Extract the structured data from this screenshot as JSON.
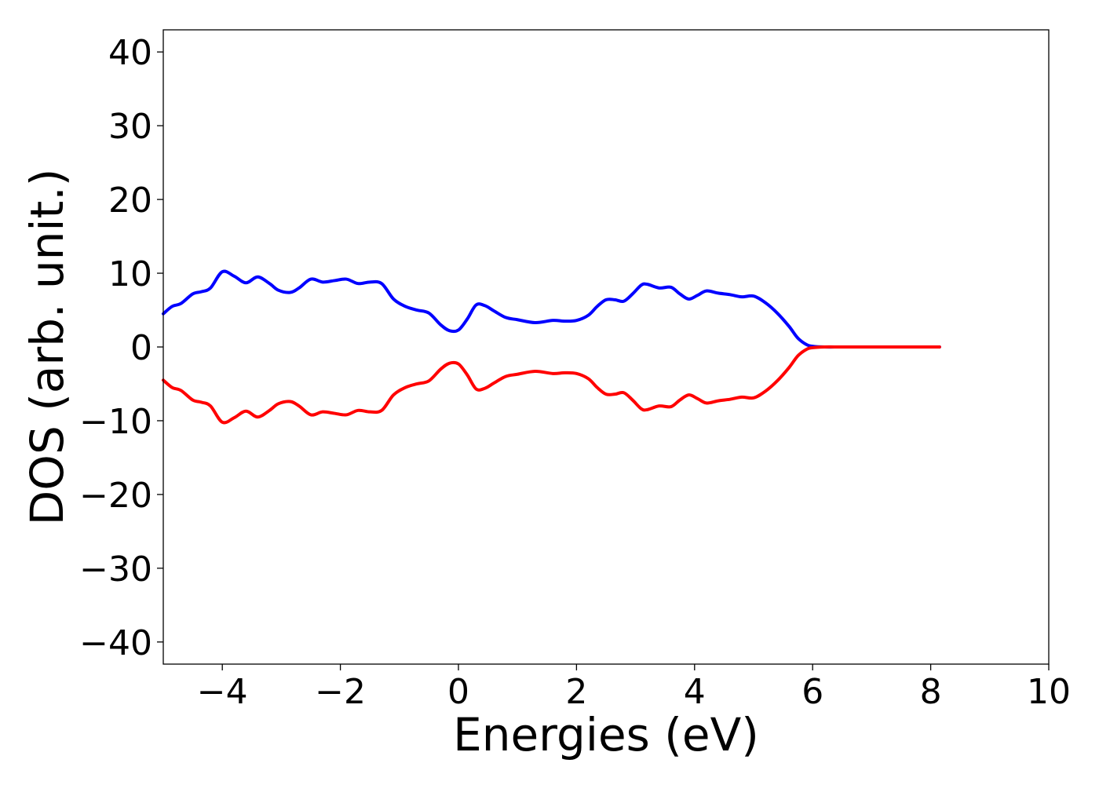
{
  "chart_data": {
    "type": "line",
    "title": "",
    "xlabel": "Energies (eV)",
    "ylabel": "DOS (arb. unit.)",
    "xlim": [
      -5,
      10
    ],
    "ylim": [
      -43,
      43
    ],
    "xticks": [
      {
        "value": -4,
        "label": "−4"
      },
      {
        "value": -2,
        "label": "−2"
      },
      {
        "value": 0,
        "label": "0"
      },
      {
        "value": 2,
        "label": "2"
      },
      {
        "value": 4,
        "label": "4"
      },
      {
        "value": 6,
        "label": "6"
      },
      {
        "value": 8,
        "label": "8"
      },
      {
        "value": 10,
        "label": "10"
      }
    ],
    "yticks": [
      {
        "value": 40,
        "label": "40"
      },
      {
        "value": 30,
        "label": "30"
      },
      {
        "value": 20,
        "label": "20"
      },
      {
        "value": 10,
        "label": "10"
      },
      {
        "value": 0,
        "label": "0"
      },
      {
        "value": -10,
        "label": "−10"
      },
      {
        "value": -20,
        "label": "−20"
      },
      {
        "value": -30,
        "label": "−30"
      },
      {
        "value": -40,
        "label": "−40"
      }
    ],
    "grid": false,
    "legend": "none",
    "series": [
      {
        "color": "#0000ff",
        "x": [
          -5.0,
          -4.85,
          -4.7,
          -4.5,
          -4.35,
          -4.2,
          -4.0,
          -3.8,
          -3.6,
          -3.4,
          -3.2,
          -3.05,
          -2.85,
          -2.7,
          -2.5,
          -2.3,
          -2.1,
          -1.9,
          -1.7,
          -1.5,
          -1.3,
          -1.1,
          -0.9,
          -0.7,
          -0.5,
          -0.3,
          -0.15,
          0.0,
          0.15,
          0.3,
          0.45,
          0.6,
          0.8,
          1.0,
          1.3,
          1.6,
          1.8,
          2.0,
          2.2,
          2.35,
          2.5,
          2.65,
          2.8,
          2.95,
          3.1,
          3.2,
          3.4,
          3.6,
          3.75,
          3.9,
          4.05,
          4.2,
          4.4,
          4.6,
          4.8,
          5.0,
          5.2,
          5.4,
          5.6,
          5.75,
          5.9,
          6.0,
          6.2,
          6.5,
          7.0,
          7.5,
          8.0,
          8.15
        ],
        "y": [
          4.5,
          5.5,
          5.9,
          7.2,
          7.5,
          8.0,
          10.2,
          9.6,
          8.7,
          9.5,
          8.6,
          7.7,
          7.4,
          8.0,
          9.2,
          8.8,
          9.0,
          9.2,
          8.6,
          8.8,
          8.6,
          6.5,
          5.5,
          5.0,
          4.6,
          3.0,
          2.2,
          2.3,
          3.8,
          5.7,
          5.6,
          4.9,
          4.0,
          3.7,
          3.3,
          3.6,
          3.5,
          3.6,
          4.3,
          5.5,
          6.4,
          6.4,
          6.2,
          7.2,
          8.4,
          8.5,
          8.0,
          8.1,
          7.2,
          6.5,
          7.0,
          7.6,
          7.3,
          7.1,
          6.8,
          6.9,
          6.0,
          4.6,
          2.8,
          1.2,
          0.3,
          0.1,
          0.0,
          0.0,
          0.0,
          0.0,
          0.0,
          0.0
        ]
      },
      {
        "color": "#ff0000",
        "x": [
          -5.0,
          -4.85,
          -4.7,
          -4.5,
          -4.35,
          -4.2,
          -4.0,
          -3.8,
          -3.6,
          -3.4,
          -3.2,
          -3.05,
          -2.85,
          -2.7,
          -2.5,
          -2.3,
          -2.1,
          -1.9,
          -1.7,
          -1.5,
          -1.3,
          -1.1,
          -0.9,
          -0.7,
          -0.5,
          -0.3,
          -0.15,
          0.0,
          0.15,
          0.3,
          0.45,
          0.6,
          0.8,
          1.0,
          1.3,
          1.6,
          1.8,
          2.0,
          2.2,
          2.35,
          2.5,
          2.65,
          2.8,
          2.95,
          3.1,
          3.2,
          3.4,
          3.6,
          3.75,
          3.9,
          4.05,
          4.2,
          4.4,
          4.6,
          4.8,
          5.0,
          5.2,
          5.4,
          5.6,
          5.75,
          5.9,
          6.0,
          6.2,
          6.5,
          7.0,
          7.5,
          8.0,
          8.15
        ],
        "y": [
          -4.5,
          -5.5,
          -5.9,
          -7.2,
          -7.5,
          -8.0,
          -10.2,
          -9.6,
          -8.7,
          -9.5,
          -8.6,
          -7.7,
          -7.4,
          -8.0,
          -9.2,
          -8.8,
          -9.0,
          -9.2,
          -8.6,
          -8.8,
          -8.6,
          -6.5,
          -5.5,
          -5.0,
          -4.6,
          -3.0,
          -2.2,
          -2.3,
          -3.8,
          -5.7,
          -5.6,
          -4.9,
          -4.0,
          -3.7,
          -3.3,
          -3.6,
          -3.5,
          -3.6,
          -4.3,
          -5.5,
          -6.4,
          -6.4,
          -6.2,
          -7.2,
          -8.4,
          -8.5,
          -8.0,
          -8.1,
          -7.2,
          -6.5,
          -7.0,
          -7.6,
          -7.3,
          -7.1,
          -6.8,
          -6.9,
          -6.0,
          -4.6,
          -2.8,
          -1.2,
          -0.3,
          -0.1,
          0.0,
          0.0,
          0.0,
          0.0,
          0.0,
          0.0
        ]
      }
    ]
  }
}
